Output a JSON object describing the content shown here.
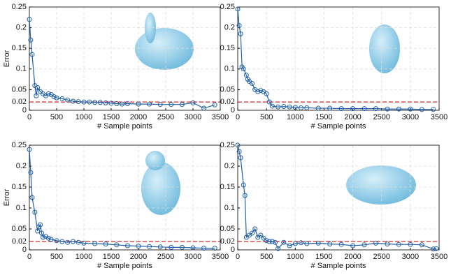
{
  "chart_data": [
    {
      "type": "line",
      "ylabel": "Error",
      "xlabel": "# Sample points",
      "color": "#1f5fa8",
      "x": [
        0,
        25,
        50,
        100,
        125,
        150,
        200,
        250,
        300,
        350,
        400,
        450,
        500,
        600,
        700,
        800,
        900,
        1000,
        1100,
        1200,
        1300,
        1400,
        1500,
        1600,
        1700,
        1800,
        2000,
        2200,
        2400,
        2600,
        2800,
        3000,
        3200,
        3400
      ],
      "values": [
        0.22,
        0.17,
        0.135,
        0.06,
        0.035,
        0.055,
        0.045,
        0.04,
        0.035,
        0.04,
        0.038,
        0.033,
        0.03,
        0.028,
        0.025,
        0.022,
        0.021,
        0.02,
        0.02,
        0.019,
        0.019,
        0.018,
        0.017,
        0.016,
        0.015,
        0.016,
        0.015,
        0.015,
        0.014,
        0.014,
        0.014,
        0.018,
        0.005,
        0.013
      ],
      "threshold": 0.02,
      "threshold_color": "#d62728",
      "xlim": [
        0,
        3500
      ],
      "ylim": [
        0,
        0.25
      ],
      "xticks": [
        0,
        500,
        1000,
        1500,
        2000,
        2500,
        3000,
        3500
      ],
      "yticks": [
        0,
        0.05,
        0.1,
        0.15,
        0.2,
        0.25
      ],
      "grid": true
    },
    {
      "type": "line",
      "xlabel": "# Sample points",
      "color": "#1f5fa8",
      "x": [
        0,
        25,
        50,
        75,
        100,
        150,
        175,
        200,
        250,
        300,
        350,
        400,
        450,
        500,
        550,
        600,
        700,
        800,
        900,
        1000,
        1100,
        1200,
        1400,
        1600,
        1800,
        2000,
        2200,
        2400,
        2600,
        2800,
        3000,
        3200,
        3400
      ],
      "values": [
        0.245,
        0.205,
        0.185,
        0.105,
        0.1,
        0.085,
        0.075,
        0.07,
        0.065,
        0.05,
        0.045,
        0.048,
        0.045,
        0.04,
        0.02,
        0.01,
        0.008,
        0.009,
        0.008,
        0.007,
        0.006,
        0.006,
        0.005,
        0.005,
        0.004,
        0.004,
        0.004,
        0.004,
        0.003,
        0.003,
        0.003,
        0.002,
        0.002
      ],
      "threshold": 0.02,
      "threshold_color": "#d62728",
      "xlim": [
        0,
        3500
      ],
      "ylim": [
        0,
        0.25
      ],
      "xticks": [
        0,
        500,
        1000,
        1500,
        2000,
        2500,
        3000,
        3500
      ],
      "yticks": [
        0,
        0.05,
        0.1,
        0.15,
        0.2,
        0.25
      ],
      "grid": true
    },
    {
      "type": "line",
      "ylabel": "Error",
      "xlabel": "# Sample points",
      "color": "#1f5fa8",
      "x": [
        0,
        25,
        50,
        100,
        150,
        175,
        200,
        225,
        250,
        300,
        350,
        400,
        500,
        600,
        700,
        800,
        900,
        1000,
        1200,
        1400,
        1600,
        1800,
        2000,
        2200,
        2400,
        2600,
        2800,
        3000,
        3200,
        3400
      ],
      "values": [
        0.24,
        0.185,
        0.125,
        0.09,
        0.045,
        0.055,
        0.06,
        0.04,
        0.03,
        0.032,
        0.028,
        0.025,
        0.022,
        0.02,
        0.018,
        0.02,
        0.018,
        0.016,
        0.015,
        0.014,
        0.012,
        0.01,
        0.009,
        0.008,
        0.007,
        0.006,
        0.006,
        0.005,
        0.004,
        0.004
      ],
      "threshold": 0.02,
      "threshold_color": "#d62728",
      "xlim": [
        0,
        3500
      ],
      "ylim": [
        0,
        0.25
      ],
      "xticks": [
        0,
        500,
        1000,
        1500,
        2000,
        2500,
        3000,
        3500
      ],
      "yticks": [
        0,
        0.05,
        0.1,
        0.15,
        0.2,
        0.25
      ],
      "grid": true
    },
    {
      "type": "line",
      "xlabel": "# Sample points",
      "color": "#1f5fa8",
      "x": [
        0,
        25,
        50,
        100,
        125,
        150,
        200,
        250,
        300,
        350,
        400,
        450,
        500,
        550,
        600,
        650,
        700,
        800,
        900,
        1000,
        1100,
        1200,
        1400,
        1600,
        1800,
        2000,
        2200,
        2400,
        2600,
        2800,
        3000,
        3200,
        3400,
        3450
      ],
      "values": [
        0.25,
        0.235,
        0.22,
        0.155,
        0.13,
        0.03,
        0.035,
        0.04,
        0.05,
        0.03,
        0.035,
        0.028,
        0.022,
        0.02,
        0.02,
        0.018,
        0.003,
        0.018,
        0.01,
        0.015,
        0.017,
        0.015,
        0.016,
        0.014,
        0.013,
        0.01,
        0.012,
        0.016,
        0.014,
        0.013,
        0.013,
        0.012,
        0.002,
        0.003
      ],
      "threshold": 0.02,
      "threshold_color": "#d62728",
      "xlim": [
        0,
        3500
      ],
      "ylim": [
        0,
        0.25
      ],
      "xticks": [
        0,
        500,
        1000,
        1500,
        2000,
        2500,
        3000,
        3500
      ],
      "yticks": [
        0,
        0.05,
        0.1,
        0.15,
        0.2,
        0.25
      ],
      "grid": true
    }
  ]
}
